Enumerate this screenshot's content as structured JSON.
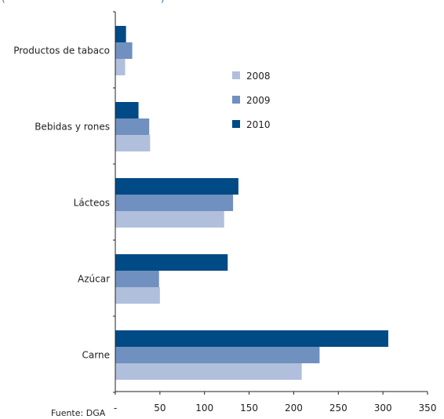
{
  "header_fragment": "(",
  "header_fragment_right": ")",
  "source_note": "Fuente: DGA",
  "chart_data": {
    "type": "bar",
    "orientation": "horizontal",
    "categories": [
      "Productos de tabaco",
      "Bebidas y rones",
      "Lácteos",
      "Azúcar",
      "Carne"
    ],
    "series": [
      {
        "name": "2008",
        "color": "#b0bfdc",
        "values": [
          11,
          39,
          122,
          50,
          209
        ]
      },
      {
        "name": "2009",
        "color": "#7090c0",
        "values": [
          19,
          38,
          132,
          49,
          229
        ]
      },
      {
        "name": "2010",
        "color": "#004a86",
        "values": [
          12,
          26,
          138,
          126,
          306
        ]
      }
    ],
    "xlim": [
      0,
      350
    ],
    "x_ticks": [
      0,
      50,
      100,
      150,
      200,
      250,
      300,
      350
    ],
    "x_tick_labels": [
      "-",
      "50",
      "100",
      "150",
      "200",
      "250",
      "300",
      "350"
    ],
    "legend_placement": "top-right",
    "grid": false
  }
}
